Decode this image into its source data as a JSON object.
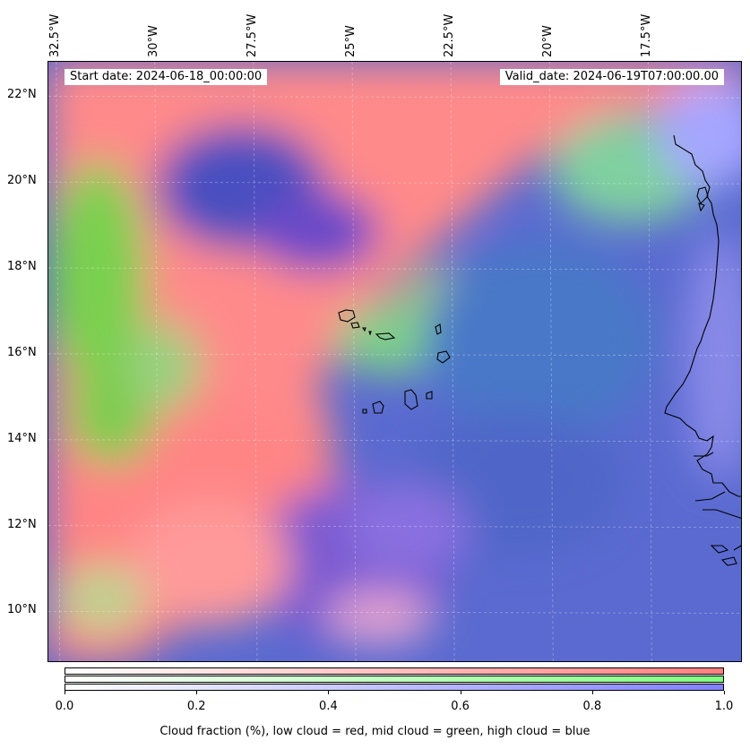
{
  "header": {
    "start_date": "Start date: 2024-06-18_00:00:00",
    "valid_date": "Valid_date: 2024-06-19T07:00:00.00"
  },
  "map": {
    "extent": {
      "lon_min": -32.7,
      "lon_max": -15.1,
      "lat_min": 8.8,
      "lat_max": 22.8
    },
    "lon_ticks": [
      {
        "value": -32.5,
        "label": "32.5°W"
      },
      {
        "value": -30.0,
        "label": "30°W"
      },
      {
        "value": -27.5,
        "label": "27.5°W"
      },
      {
        "value": -25.0,
        "label": "25°W"
      },
      {
        "value": -22.5,
        "label": "22.5°W"
      },
      {
        "value": -20.0,
        "label": "20°W"
      },
      {
        "value": -17.5,
        "label": "17.5°W"
      }
    ],
    "lat_ticks": [
      {
        "value": 22,
        "label": "22°N"
      },
      {
        "value": 20,
        "label": "20°N"
      },
      {
        "value": 18,
        "label": "18°N"
      },
      {
        "value": 16,
        "label": "16°N"
      },
      {
        "value": 14,
        "label": "14°N"
      },
      {
        "value": 12,
        "label": "12°N"
      },
      {
        "value": 10,
        "label": "10°N"
      }
    ],
    "colors": {
      "low_cloud": "#ff8080",
      "mid_cloud": "#80ff80",
      "high_cloud": "#8080ff",
      "coastline": "#000000"
    }
  },
  "colorbar": {
    "ticks": [
      "0.0",
      "0.2",
      "0.4",
      "0.6",
      "0.8",
      "1.0"
    ],
    "tick_values": [
      0,
      0.2,
      0.4,
      0.6,
      0.8,
      1.0
    ],
    "label": "Cloud fraction (%), low cloud = red, mid cloud = green, high cloud = blue"
  }
}
